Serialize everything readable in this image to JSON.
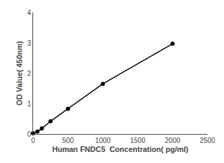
{
  "chart_data": {
    "type": "line",
    "x": [
      0,
      62.5,
      125,
      250,
      500,
      1000,
      2000
    ],
    "values": [
      0.02,
      0.08,
      0.18,
      0.42,
      0.83,
      1.65,
      2.97
    ],
    "xlabel": "Human FNDC5  Concentration( pg/ml)",
    "ylabel": "OD Value( 450nm)",
    "xlim": [
      0,
      2500
    ],
    "ylim": [
      0,
      4
    ],
    "xticks": [
      0,
      500,
      1000,
      1500,
      2000,
      2500
    ],
    "yticks": [
      0,
      1,
      2,
      3,
      4
    ],
    "color": "#000000",
    "marker": "circle",
    "grid": false
  }
}
